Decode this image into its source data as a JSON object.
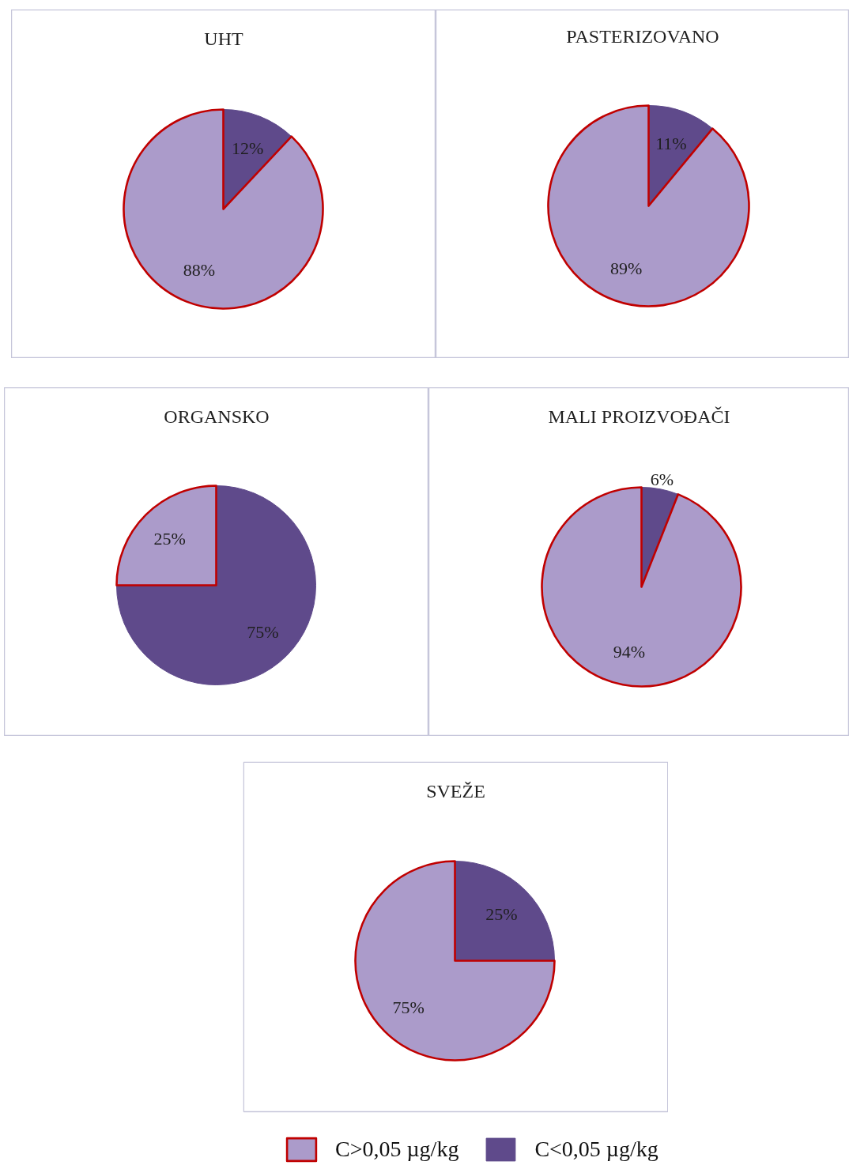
{
  "chart_data": [
    {
      "type": "pie",
      "title": "UHT",
      "values": [
        88,
        12
      ],
      "colors": [
        "#ab9bca",
        "#5f4a8b"
      ],
      "value_labels": [
        "88%",
        "12%"
      ]
    },
    {
      "type": "pie",
      "title": "PASTERIZOVANO",
      "values": [
        89,
        11
      ],
      "colors": [
        "#ab9bca",
        "#5f4a8b"
      ],
      "value_labels": [
        "89%",
        "11%"
      ]
    },
    {
      "type": "pie",
      "title": "ORGANSKO",
      "values": [
        25,
        75
      ],
      "colors": [
        "#ab9bca",
        "#5f4a8b"
      ],
      "value_labels": [
        "25%",
        "75%"
      ]
    },
    {
      "type": "pie",
      "title": "MALI PROIZVOĐAČI",
      "values": [
        94,
        6
      ],
      "colors": [
        "#ab9bca",
        "#5f4a8b"
      ],
      "value_labels": [
        "94%",
        "6%"
      ]
    },
    {
      "type": "pie",
      "title": "SVEŽE",
      "categories": [
        "C>0,05 µg/kg",
        "C<0,05 µg/kg"
      ],
      "values": [
        75,
        25
      ],
      "colors": [
        "#ab9bca",
        "#5f4a8b"
      ],
      "value_labels": [
        "75%",
        "25%"
      ],
      "legend": "bottom"
    }
  ]
}
